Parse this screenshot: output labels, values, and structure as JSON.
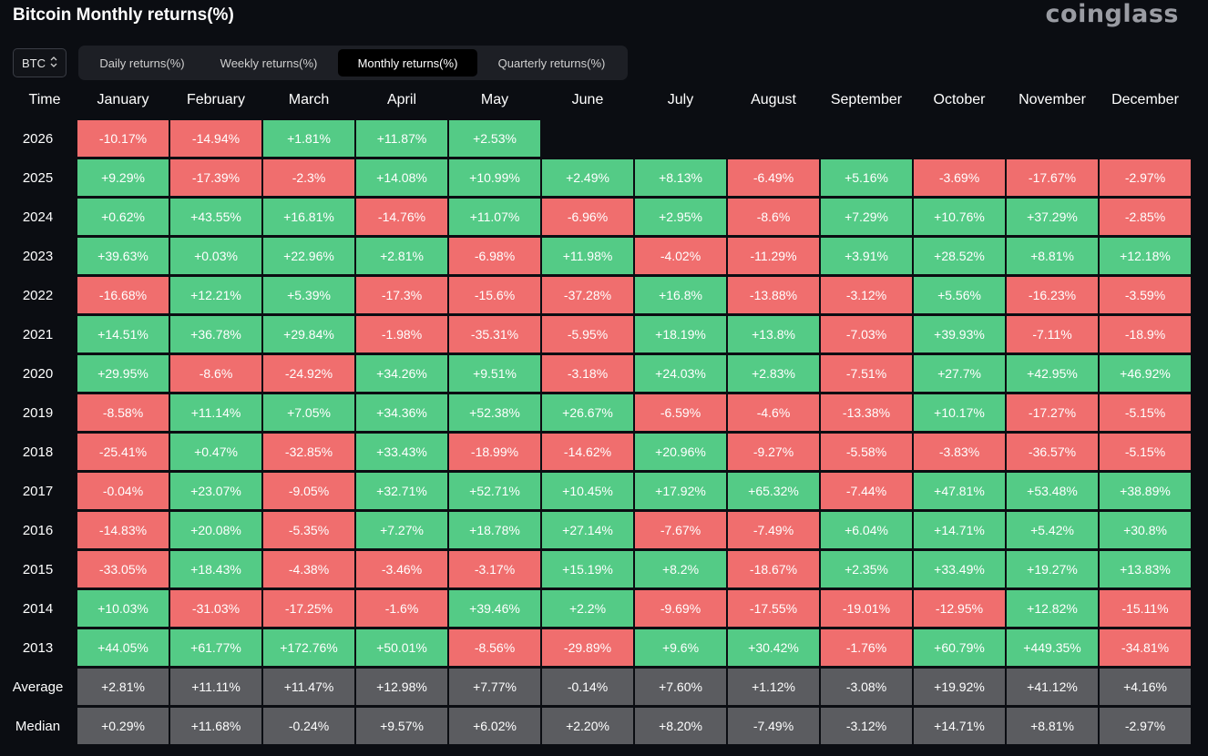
{
  "header": {
    "title": "Bitcoin Monthly returns(%)",
    "brand": "coinglass"
  },
  "asset_select": {
    "value": "BTC"
  },
  "tabs": [
    {
      "label": "Daily returns(%)",
      "active": false
    },
    {
      "label": "Weekly returns(%)",
      "active": false
    },
    {
      "label": "Monthly returns(%)",
      "active": true
    },
    {
      "label": "Quarterly returns(%)",
      "active": false
    }
  ],
  "colors": {
    "positive": "#54cb86",
    "negative": "#f06e6e",
    "stat": "#5b5c60",
    "background": "#0b0d12"
  },
  "table": {
    "corner_label": "Time",
    "months": [
      "January",
      "February",
      "March",
      "April",
      "May",
      "June",
      "July",
      "August",
      "September",
      "October",
      "November",
      "December"
    ],
    "rows": [
      {
        "label": "2026",
        "values": [
          "-10.17%",
          "-14.94%",
          "+1.81%",
          "+11.87%",
          "+2.53%",
          "",
          "",
          "",
          "",
          "",
          "",
          ""
        ]
      },
      {
        "label": "2025",
        "values": [
          "+9.29%",
          "-17.39%",
          "-2.3%",
          "+14.08%",
          "+10.99%",
          "+2.49%",
          "+8.13%",
          "-6.49%",
          "+5.16%",
          "-3.69%",
          "-17.67%",
          "-2.97%"
        ]
      },
      {
        "label": "2024",
        "values": [
          "+0.62%",
          "+43.55%",
          "+16.81%",
          "-14.76%",
          "+11.07%",
          "-6.96%",
          "+2.95%",
          "-8.6%",
          "+7.29%",
          "+10.76%",
          "+37.29%",
          "-2.85%"
        ]
      },
      {
        "label": "2023",
        "values": [
          "+39.63%",
          "+0.03%",
          "+22.96%",
          "+2.81%",
          "-6.98%",
          "+11.98%",
          "-4.02%",
          "-11.29%",
          "+3.91%",
          "+28.52%",
          "+8.81%",
          "+12.18%"
        ]
      },
      {
        "label": "2022",
        "values": [
          "-16.68%",
          "+12.21%",
          "+5.39%",
          "-17.3%",
          "-15.6%",
          "-37.28%",
          "+16.8%",
          "-13.88%",
          "-3.12%",
          "+5.56%",
          "-16.23%",
          "-3.59%"
        ]
      },
      {
        "label": "2021",
        "values": [
          "+14.51%",
          "+36.78%",
          "+29.84%",
          "-1.98%",
          "-35.31%",
          "-5.95%",
          "+18.19%",
          "+13.8%",
          "-7.03%",
          "+39.93%",
          "-7.11%",
          "-18.9%"
        ]
      },
      {
        "label": "2020",
        "values": [
          "+29.95%",
          "-8.6%",
          "-24.92%",
          "+34.26%",
          "+9.51%",
          "-3.18%",
          "+24.03%",
          "+2.83%",
          "-7.51%",
          "+27.7%",
          "+42.95%",
          "+46.92%"
        ]
      },
      {
        "label": "2019",
        "values": [
          "-8.58%",
          "+11.14%",
          "+7.05%",
          "+34.36%",
          "+52.38%",
          "+26.67%",
          "-6.59%",
          "-4.6%",
          "-13.38%",
          "+10.17%",
          "-17.27%",
          "-5.15%"
        ]
      },
      {
        "label": "2018",
        "values": [
          "-25.41%",
          "+0.47%",
          "-32.85%",
          "+33.43%",
          "-18.99%",
          "-14.62%",
          "+20.96%",
          "-9.27%",
          "-5.58%",
          "-3.83%",
          "-36.57%",
          "-5.15%"
        ]
      },
      {
        "label": "2017",
        "values": [
          "-0.04%",
          "+23.07%",
          "-9.05%",
          "+32.71%",
          "+52.71%",
          "+10.45%",
          "+17.92%",
          "+65.32%",
          "-7.44%",
          "+47.81%",
          "+53.48%",
          "+38.89%"
        ]
      },
      {
        "label": "2016",
        "values": [
          "-14.83%",
          "+20.08%",
          "-5.35%",
          "+7.27%",
          "+18.78%",
          "+27.14%",
          "-7.67%",
          "-7.49%",
          "+6.04%",
          "+14.71%",
          "+5.42%",
          "+30.8%"
        ]
      },
      {
        "label": "2015",
        "values": [
          "-33.05%",
          "+18.43%",
          "-4.38%",
          "-3.46%",
          "-3.17%",
          "+15.19%",
          "+8.2%",
          "-18.67%",
          "+2.35%",
          "+33.49%",
          "+19.27%",
          "+13.83%"
        ]
      },
      {
        "label": "2014",
        "values": [
          "+10.03%",
          "-31.03%",
          "-17.25%",
          "-1.6%",
          "+39.46%",
          "+2.2%",
          "-9.69%",
          "-17.55%",
          "-19.01%",
          "-12.95%",
          "+12.82%",
          "-15.11%"
        ]
      },
      {
        "label": "2013",
        "values": [
          "+44.05%",
          "+61.77%",
          "+172.76%",
          "+50.01%",
          "-8.56%",
          "-29.89%",
          "+9.6%",
          "+30.42%",
          "-1.76%",
          "+60.79%",
          "+449.35%",
          "-34.81%"
        ]
      }
    ],
    "stats": [
      {
        "label": "Average",
        "values": [
          "+2.81%",
          "+11.11%",
          "+11.47%",
          "+12.98%",
          "+7.77%",
          "-0.14%",
          "+7.60%",
          "+1.12%",
          "-3.08%",
          "+19.92%",
          "+41.12%",
          "+4.16%"
        ]
      },
      {
        "label": "Median",
        "values": [
          "+0.29%",
          "+11.68%",
          "-0.24%",
          "+9.57%",
          "+6.02%",
          "+2.20%",
          "+8.20%",
          "-7.49%",
          "-3.12%",
          "+14.71%",
          "+8.81%",
          "-2.97%"
        ]
      }
    ]
  }
}
